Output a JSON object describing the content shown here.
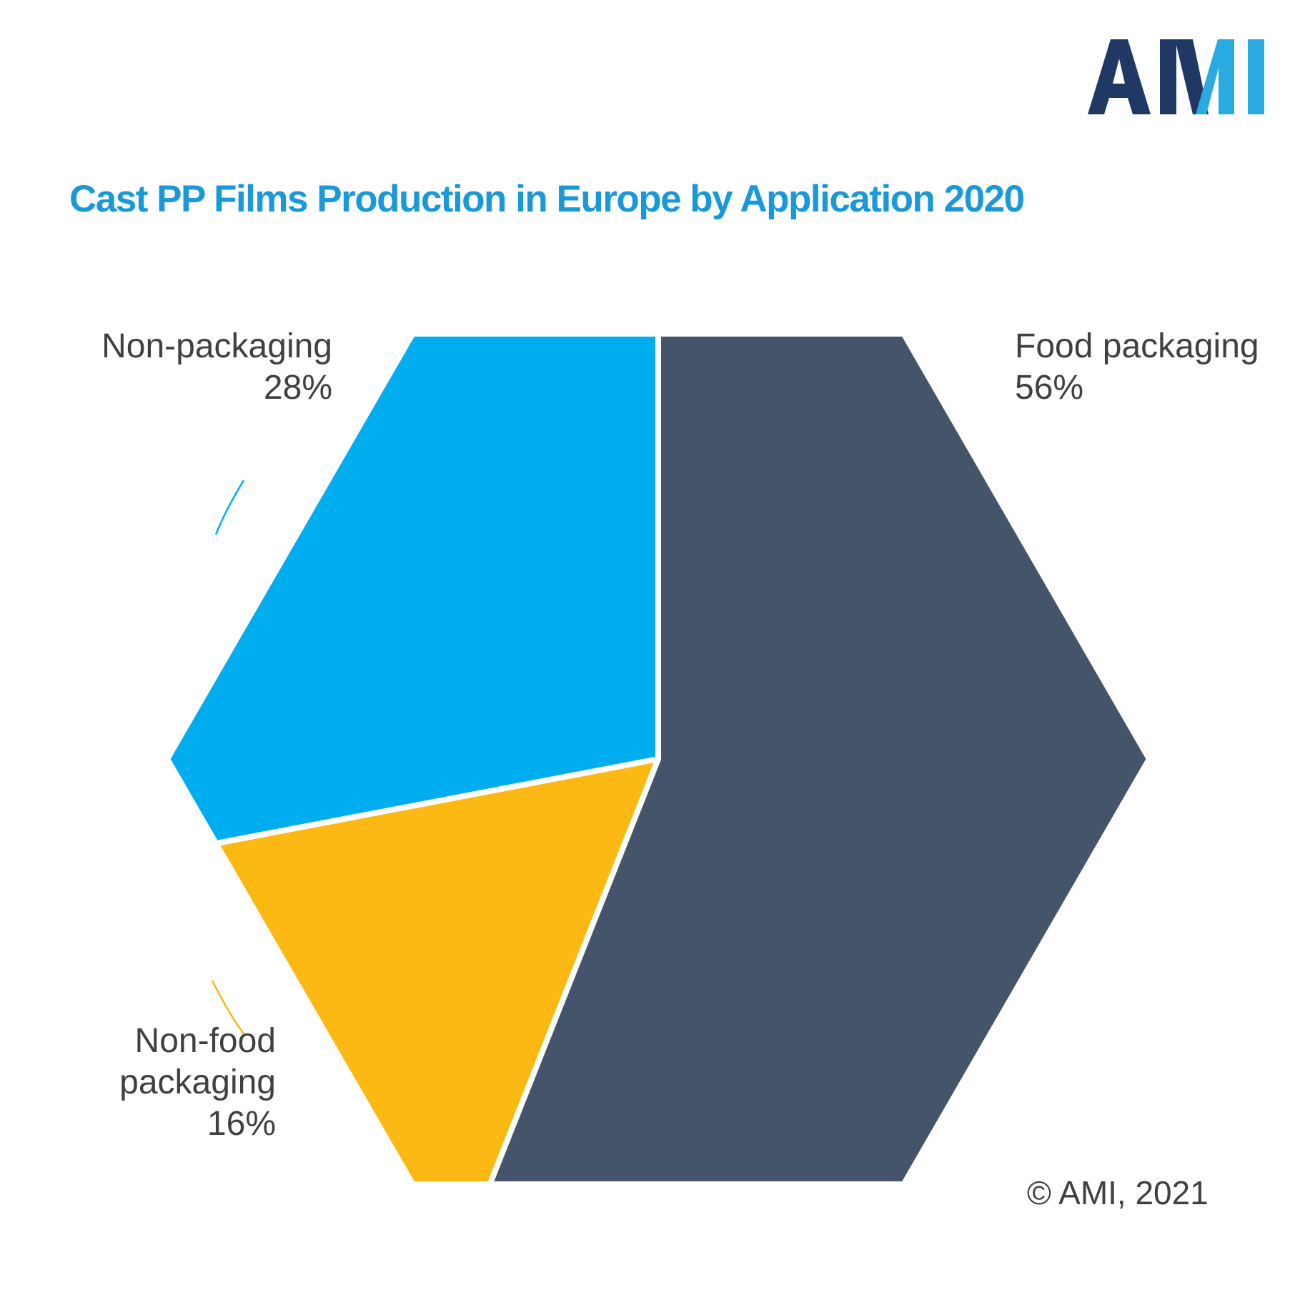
{
  "logo": {
    "text": "AMI",
    "dark_color": "#1F3864",
    "light_color": "#29ABE2"
  },
  "title": {
    "text": "Cast PP Films Production in Europe by Application 2020",
    "color": "#1999D9"
  },
  "copyright": {
    "text": "© AMI, 2021"
  },
  "chart_data": {
    "type": "pie",
    "shape": "hexagon",
    "title": "Cast PP Films Production in Europe by Application 2020",
    "unit": "percent",
    "direction": "clockwise",
    "start_angle_deg": 0,
    "legend_position": "outside-labels",
    "slices": [
      {
        "label": "Food packaging",
        "value": 56,
        "pct_label": "56%",
        "color": "#44546A",
        "label_lines": [
          "Food packaging"
        ]
      },
      {
        "label": "Non-food packaging",
        "value": 16,
        "pct_label": "16%",
        "color": "#FCB813",
        "label_lines": [
          "Non-food",
          "packaging"
        ]
      },
      {
        "label": "Non-packaging",
        "value": 28,
        "pct_label": "28%",
        "color": "#00AEEF",
        "label_lines": [
          "Non-packaging"
        ]
      }
    ]
  }
}
